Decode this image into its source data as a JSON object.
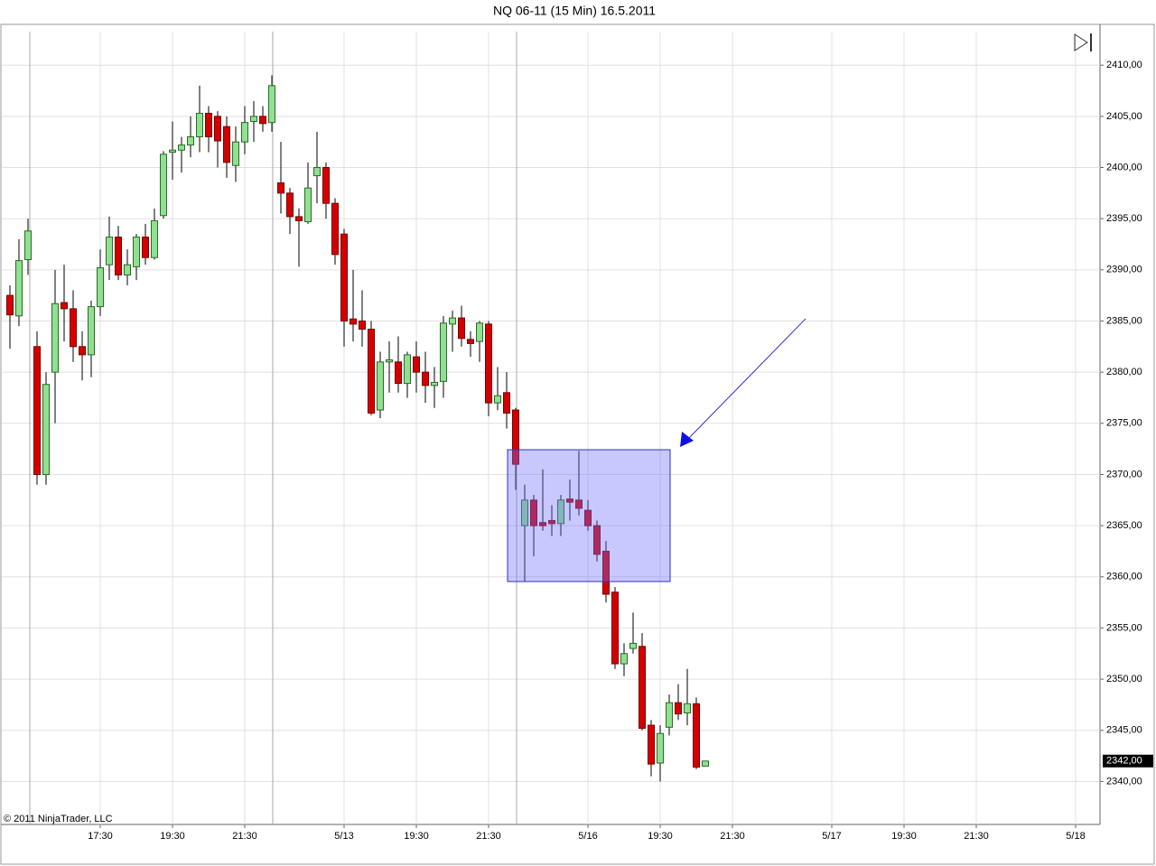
{
  "chart_data": {
    "type": "candlestick",
    "title": "NQ 06-11 (15 Min)  16.5.2011",
    "copyright": "© 2011 NinjaTrader, LLC",
    "x": [
      0,
      1,
      2,
      3,
      4,
      5,
      6,
      7,
      8,
      9,
      10,
      11,
      12,
      13,
      14,
      15,
      16,
      17,
      18,
      19,
      20,
      21,
      22,
      23,
      24,
      25,
      26,
      27,
      28,
      29,
      30,
      31,
      32,
      33,
      34,
      35,
      36,
      37,
      38,
      39,
      40,
      41,
      42,
      43,
      44,
      45,
      46,
      47,
      48,
      49,
      50,
      51,
      52,
      53,
      54,
      55,
      56,
      57,
      58,
      59,
      60,
      61,
      62,
      63,
      64,
      65,
      66,
      67,
      68,
      69,
      70,
      71,
      72,
      73,
      74,
      75,
      76,
      77
    ],
    "open": [
      2387.5,
      2385.5,
      2391,
      2382.5,
      2370,
      2380,
      2386.8,
      2386.2,
      2382.5,
      2381.7,
      2386.4,
      2390.5,
      2393.2,
      2389.5,
      2390.3,
      2393.2,
      2391.2,
      2395.3,
      2401.5,
      2401.7,
      2402.2,
      2403,
      2405.3,
      2405,
      2404,
      2400.2,
      2402.5,
      2404.5,
      2405,
      2404.4,
      2398.5,
      2397.5,
      2395.2,
      2394.7,
      2399.2,
      2400,
      2396.5,
      2393.5,
      2385.2,
      2385,
      2384.2,
      2376.3,
      2381,
      2381,
      2378.9,
      2381.5,
      2380,
      2378.7,
      2379.1,
      2384.7,
      2385.3,
      2383.2,
      2383,
      2384.7,
      2377,
      2378,
      2376.3,
      2365,
      2367.5,
      2365.3,
      2365.5,
      2365.2,
      2367.6,
      2367.5,
      2366.5,
      2365,
      2362.5,
      2358.5,
      2351.5,
      2353,
      2353.2,
      2345.5,
      2341.8,
      2345.3,
      2347.7,
      2346.7,
      2347.6,
      2341.5
    ],
    "high": [
      2388.5,
      2393,
      2395,
      2384,
      2380,
      2390,
      2390.5,
      2388,
      2384,
      2387,
      2392,
      2395.2,
      2394.3,
      2392,
      2393.5,
      2394.5,
      2396,
      2401.6,
      2404.5,
      2403,
      2405,
      2408,
      2406,
      2405.5,
      2405,
      2404,
      2406,
      2406.5,
      2406,
      2409,
      2402.5,
      2398,
      2396,
      2400.5,
      2403.5,
      2400.5,
      2397,
      2394,
      2390,
      2388,
      2385,
      2382,
      2383,
      2383.5,
      2382,
      2383,
      2382,
      2380.5,
      2385.5,
      2386,
      2386.5,
      2384,
      2385,
      2385,
      2380.5,
      2380,
      2376.5,
      2369,
      2368,
      2370.5,
      2367,
      2368,
      2369.5,
      2372.3,
      2367.5,
      2365.5,
      2363.5,
      2359,
      2353.5,
      2356.5,
      2354.5,
      2346,
      2345.5,
      2348.5,
      2349.5,
      2351,
      2348.2,
      2342
    ],
    "low": [
      2382.3,
      2384.5,
      2389.5,
      2369,
      2369,
      2375,
      2383,
      2381,
      2379.2,
      2379.5,
      2385.5,
      2389,
      2389,
      2388.5,
      2389,
      2390.5,
      2391,
      2395,
      2398.8,
      2399.5,
      2401,
      2401.5,
      2401.5,
      2400,
      2399,
      2398.6,
      2401.3,
      2402.5,
      2403.5,
      2403.5,
      2395.5,
      2393.5,
      2390.3,
      2394.5,
      2396.5,
      2395,
      2390.5,
      2382.5,
      2383,
      2382.5,
      2375.8,
      2375.5,
      2378,
      2378,
      2377.5,
      2378,
      2377,
      2376.5,
      2377.5,
      2382,
      2382.5,
      2381.5,
      2381,
      2375.7,
      2376.3,
      2374.5,
      2368.5,
      2359.5,
      2362,
      2364.5,
      2364,
      2364,
      2365.5,
      2366,
      2364.5,
      2361.5,
      2357.5,
      2351,
      2350.3,
      2352.5,
      2345,
      2340.5,
      2340,
      2344.5,
      2346,
      2345.5,
      2341.2,
      2341.5
    ],
    "close": [
      2385.6,
      2390.9,
      2393.8,
      2370,
      2378.8,
      2386.7,
      2386.2,
      2382.5,
      2381.7,
      2386.4,
      2390.2,
      2393.2,
      2389.5,
      2390.5,
      2393.2,
      2391.2,
      2394.8,
      2401.3,
      2401.7,
      2402.2,
      2403,
      2405.3,
      2403,
      2402.6,
      2400.5,
      2402.5,
      2404.4,
      2405,
      2404.3,
      2408,
      2397.5,
      2395.2,
      2394.8,
      2398,
      2400,
      2396.5,
      2391.5,
      2385,
      2384.7,
      2384.2,
      2376,
      2381,
      2381.2,
      2378.9,
      2381.7,
      2380,
      2378.7,
      2379,
      2384.8,
      2385.3,
      2383.3,
      2382.8,
      2384.8,
      2377,
      2377.7,
      2376,
      2371,
      2367.5,
      2365,
      2365,
      2365.2,
      2367.5,
      2367.3,
      2366.7,
      2365,
      2362.2,
      2358.3,
      2351.5,
      2352.5,
      2353.5,
      2345.2,
      2341.7,
      2344.7,
      2347.7,
      2346.6,
      2347.6,
      2341.4,
      2342
    ],
    "up_color": "#90e090",
    "down_color": "#d40000",
    "grid": true,
    "ylim": [
      2335.8,
      2413.9
    ],
    "yticks": [
      {
        "value": 2340,
        "label": "2340,00"
      },
      {
        "value": 2345,
        "label": "2345,00"
      },
      {
        "value": 2350,
        "label": "2350,00"
      },
      {
        "value": 2355,
        "label": "2355,00"
      },
      {
        "value": 2360,
        "label": "2360,00"
      },
      {
        "value": 2365,
        "label": "2365,00"
      },
      {
        "value": 2370,
        "label": "2370,00"
      },
      {
        "value": 2375,
        "label": "2375,00"
      },
      {
        "value": 2380,
        "label": "2380,00"
      },
      {
        "value": 2385,
        "label": "2385,00"
      },
      {
        "value": 2390,
        "label": "2390,00"
      },
      {
        "value": 2395,
        "label": "2395,00"
      },
      {
        "value": 2400,
        "label": "2400,00"
      },
      {
        "value": 2405,
        "label": "2405,00"
      },
      {
        "value": 2410,
        "label": "2410,00"
      }
    ],
    "xlim": [
      -0.9,
      120.7
    ],
    "xticks": [
      {
        "value": 10,
        "label": "17:30"
      },
      {
        "value": 18,
        "label": "19:30"
      },
      {
        "value": 26,
        "label": "21:30"
      },
      {
        "value": 37,
        "label": "5/13"
      },
      {
        "value": 45,
        "label": "19:30"
      },
      {
        "value": 53,
        "label": "21:30"
      },
      {
        "value": 64,
        "label": "5/16"
      },
      {
        "value": 72,
        "label": "19:30"
      },
      {
        "value": 80,
        "label": "21:30"
      },
      {
        "value": 91,
        "label": "5/17"
      },
      {
        "value": 99,
        "label": "19:30"
      },
      {
        "value": 107,
        "label": "21:30"
      },
      {
        "value": 118,
        "label": "5/18"
      }
    ],
    "last_price": {
      "value": 2342,
      "label": "2342,00"
    }
  }
}
